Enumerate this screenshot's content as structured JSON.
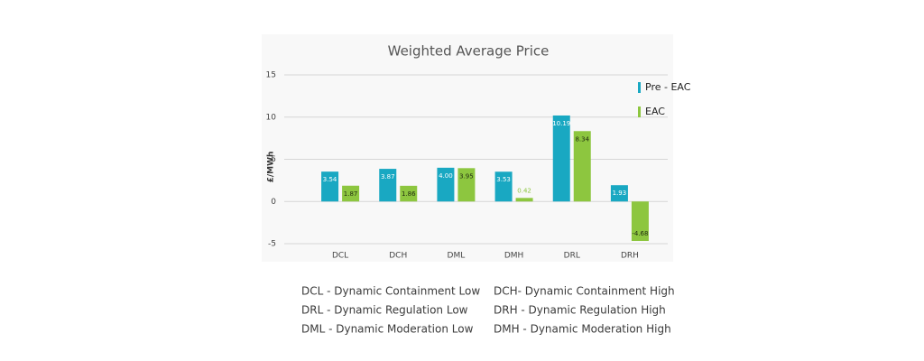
{
  "chart_data": {
    "type": "bar",
    "title": "Weighted Average Price",
    "y_label": "£/MWh",
    "categories": [
      "DCL",
      "DCH",
      "DML",
      "DMH",
      "DRL",
      "DRH"
    ],
    "series": [
      {
        "name": "Pre - EAC",
        "color": "#19a8c2",
        "values": [
          3.54,
          3.87,
          4.0,
          3.53,
          10.19,
          1.93
        ],
        "value_labels": [
          "3.54",
          "3.87",
          "4.00",
          "3.53",
          "10.19",
          "1.93"
        ]
      },
      {
        "name": "EAC",
        "color": "#8dc63f",
        "values": [
          1.87,
          1.86,
          3.95,
          0.42,
          8.34,
          -4.68
        ]
      }
    ],
    "ylim": [
      -5,
      15
    ],
    "yticks": [
      -5,
      0,
      5,
      10,
      15
    ],
    "grid": true
  },
  "footnotes": [
    [
      "DCL - Dynamic Containment Low",
      "DCH- Dynamic Containment High"
    ],
    [
      "DRL - Dynamic Regulation Low",
      "DRH - Dynamic Regulation High"
    ],
    [
      "DML - Dynamic Moderation Low",
      "DMH - Dynamic Moderation High"
    ]
  ]
}
